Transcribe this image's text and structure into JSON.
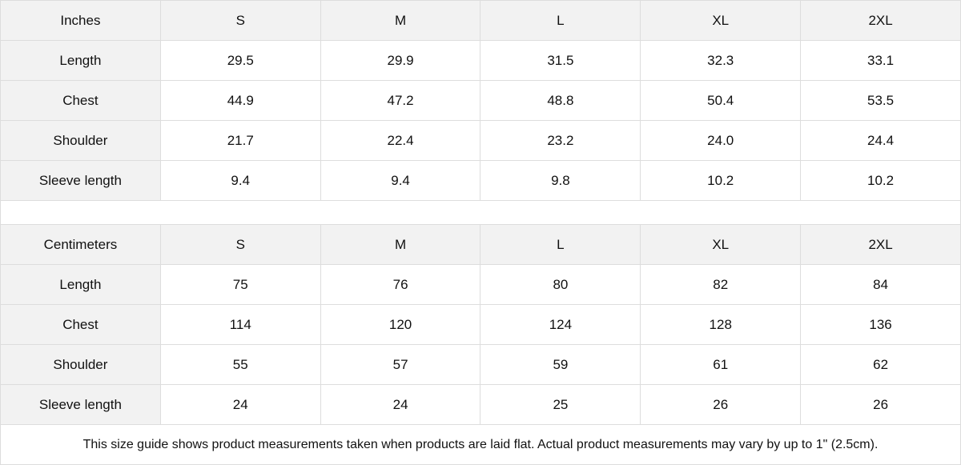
{
  "tables": [
    {
      "header": [
        "Inches",
        "S",
        "M",
        "L",
        "XL",
        "2XL"
      ],
      "rows": [
        [
          "Length",
          "29.5",
          "29.9",
          "31.5",
          "32.3",
          "33.1"
        ],
        [
          "Chest",
          "44.9",
          "47.2",
          "48.8",
          "50.4",
          "53.5"
        ],
        [
          "Shoulder",
          "21.7",
          "22.4",
          "23.2",
          "24.0",
          "24.4"
        ],
        [
          "Sleeve length",
          "9.4",
          "9.4",
          "9.8",
          "10.2",
          "10.2"
        ]
      ]
    },
    {
      "header": [
        "Centimeters",
        "S",
        "M",
        "L",
        "XL",
        "2XL"
      ],
      "rows": [
        [
          "Length",
          "75",
          "76",
          "80",
          "82",
          "84"
        ],
        [
          "Chest",
          "114",
          "120",
          "124",
          "128",
          "136"
        ],
        [
          "Shoulder",
          "55",
          "57",
          "59",
          "61",
          "62"
        ],
        [
          "Sleeve length",
          "24",
          "24",
          "25",
          "26",
          "26"
        ]
      ]
    }
  ],
  "note": "This size guide shows product measurements taken when products are laid flat.  Actual product measurements may vary by up to 1\" (2.5cm).",
  "colors": {
    "header_bg": "#f2f2f2",
    "border": "#dddddd"
  }
}
